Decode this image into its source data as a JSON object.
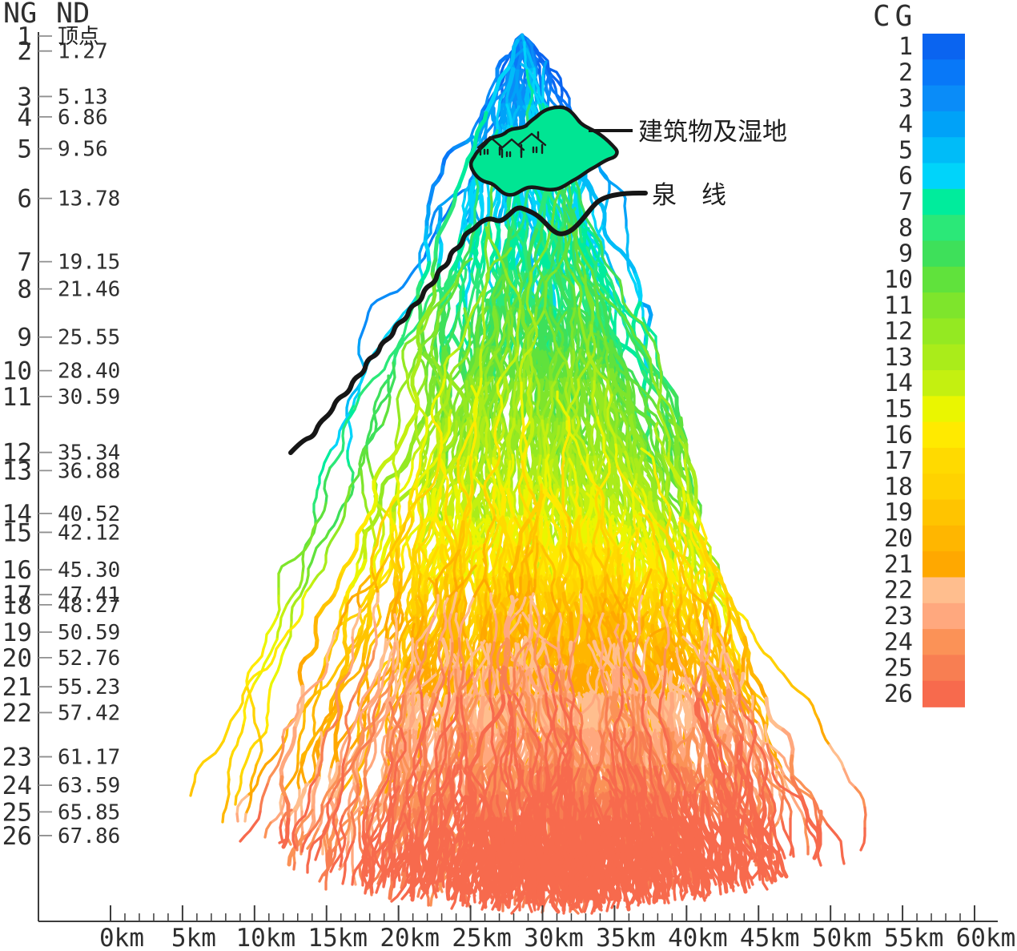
{
  "figure": {
    "left_axis": {
      "header_ng": "NG",
      "header_nd": "ND",
      "rows": [
        {
          "ng": "1",
          "nd": "顶点"
        },
        {
          "ng": "2",
          "nd": "1.27"
        },
        {
          "ng": "3",
          "nd": "5.13"
        },
        {
          "ng": "4",
          "nd": "6.86"
        },
        {
          "ng": "5",
          "nd": "9.56"
        },
        {
          "ng": "6",
          "nd": "13.78"
        },
        {
          "ng": "7",
          "nd": "19.15"
        },
        {
          "ng": "8",
          "nd": "21.46"
        },
        {
          "ng": "9",
          "nd": "25.55"
        },
        {
          "ng": "10",
          "nd": "28.40"
        },
        {
          "ng": "11",
          "nd": "30.59"
        },
        {
          "ng": "12",
          "nd": "35.34"
        },
        {
          "ng": "13",
          "nd": "36.88"
        },
        {
          "ng": "14",
          "nd": "40.52"
        },
        {
          "ng": "15",
          "nd": "42.12"
        },
        {
          "ng": "16",
          "nd": "45.30"
        },
        {
          "ng": "17",
          "nd": "47.41"
        },
        {
          "ng": "18",
          "nd": "48.27"
        },
        {
          "ng": "19",
          "nd": "50.59"
        },
        {
          "ng": "20",
          "nd": "52.76"
        },
        {
          "ng": "21",
          "nd": "55.23"
        },
        {
          "ng": "22",
          "nd": "57.42"
        },
        {
          "ng": "23",
          "nd": "61.17"
        },
        {
          "ng": "24",
          "nd": "63.59"
        },
        {
          "ng": "25",
          "nd": "65.85"
        },
        {
          "ng": "26",
          "nd": "67.86"
        }
      ]
    },
    "bottom_axis": {
      "tick_labels": [
        "0km",
        "5km",
        "10km",
        "15km",
        "20km",
        "25km",
        "30km",
        "35km",
        "40km",
        "45km",
        "50km",
        "55km",
        "60km"
      ]
    },
    "legend": {
      "title": "CG",
      "entries": [
        {
          "label": "1",
          "color": "#0A64F0"
        },
        {
          "label": "2",
          "color": "#0878F8"
        },
        {
          "label": "3",
          "color": "#0A8CF8"
        },
        {
          "label": "4",
          "color": "#00A2F8"
        },
        {
          "label": "5",
          "color": "#00BCF8"
        },
        {
          "label": "6",
          "color": "#00D4FA"
        },
        {
          "label": "7",
          "color": "#00EC9C"
        },
        {
          "label": "8",
          "color": "#2BE878"
        },
        {
          "label": "9",
          "color": "#3EE05A"
        },
        {
          "label": "10",
          "color": "#60E23C"
        },
        {
          "label": "11",
          "color": "#7EE52C"
        },
        {
          "label": "12",
          "color": "#94E922"
        },
        {
          "label": "13",
          "color": "#AAEC1A"
        },
        {
          "label": "14",
          "color": "#C4F010"
        },
        {
          "label": "15",
          "color": "#EAF600"
        },
        {
          "label": "16",
          "color": "#FFEA00"
        },
        {
          "label": "17",
          "color": "#FFDA00"
        },
        {
          "label": "18",
          "color": "#FFD200"
        },
        {
          "label": "19",
          "color": "#FFC400"
        },
        {
          "label": "20",
          "color": "#FFB600"
        },
        {
          "label": "21",
          "color": "#FFA800"
        },
        {
          "label": "22",
          "color": "#FFBE8E"
        },
        {
          "label": "23",
          "color": "#FFA87E"
        },
        {
          "label": "24",
          "color": "#FB9257"
        },
        {
          "label": "25",
          "color": "#F87E52"
        },
        {
          "label": "26",
          "color": "#F76A4D"
        }
      ]
    },
    "annotations": {
      "wetland": "建筑物及湿地",
      "spring": "泉　线",
      "wetland_fill": "#00E593"
    }
  }
}
